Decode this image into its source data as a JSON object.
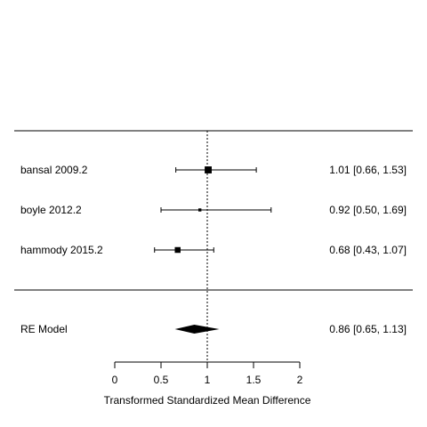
{
  "chart_data": {
    "type": "forest",
    "xlabel": "Transformed Standardized Mean Difference",
    "xlim": [
      0,
      2
    ],
    "xticks": [
      0,
      0.5,
      1,
      1.5,
      2
    ],
    "xtick_labels": [
      "0",
      "0.5",
      "1",
      "1.5",
      "2"
    ],
    "reference_line": 1,
    "studies": [
      {
        "label": "bansal 2009.2",
        "estimate": 1.01,
        "lower": 0.66,
        "upper": 1.53,
        "ci_text": "1.01 [0.66, 1.53]",
        "weight": 0.42
      },
      {
        "label": "boyle 2012.2",
        "estimate": 0.92,
        "lower": 0.5,
        "upper": 1.69,
        "ci_text": "0.92 [0.50, 1.69]",
        "weight": 0.1
      },
      {
        "label": "hammody 2015.2",
        "estimate": 0.68,
        "lower": 0.43,
        "upper": 1.07,
        "ci_text": "0.68 [0.43, 1.07]",
        "weight": 0.32
      }
    ],
    "summary": {
      "label": "RE Model",
      "estimate": 0.86,
      "lower": 0.65,
      "upper": 1.13,
      "ci_text": "0.86 [0.65, 1.13]"
    },
    "colors": {
      "marks": "#000000",
      "lines": "#000000",
      "background": "#ffffff"
    }
  }
}
